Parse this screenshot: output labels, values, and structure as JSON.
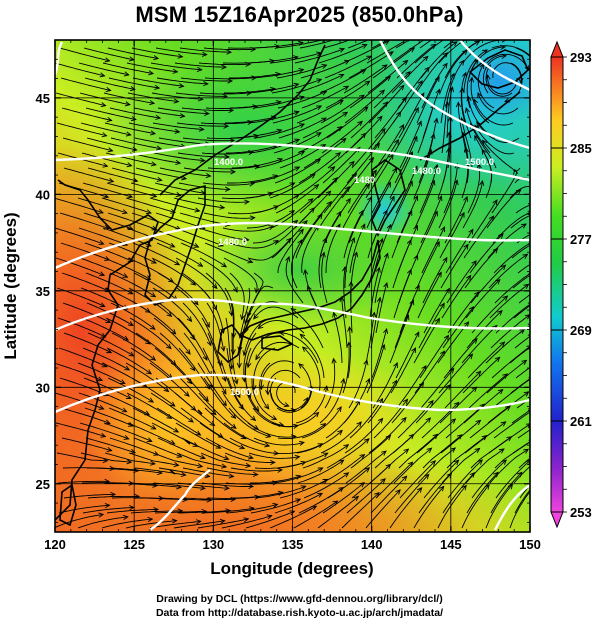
{
  "title": "MSM 15Z16Apr2025 (850.0hPa)",
  "credit": {
    "line1": "Drawing by DCL (https://www.gfd-dennou.org/library/dcl/)",
    "line2": "Data from http://database.rish.kyoto-u.ac.jp/arch/jmadata/"
  },
  "axes": {
    "xlabel": "Longitude (degrees)",
    "ylabel": "Latitude  (degrees)",
    "xticks": [
      "120",
      "125",
      "130",
      "135",
      "140",
      "145",
      "150"
    ],
    "yticks": [
      "25",
      "30",
      "35",
      "40",
      "45"
    ]
  },
  "colorbar": {
    "labels": [
      "293",
      "285",
      "277",
      "269",
      "261",
      "253"
    ]
  },
  "contour_labels": [
    "1400.0",
    "1480",
    "1500.0",
    "1480.0",
    "1480.0",
    "1500.0"
  ],
  "map": {
    "lon_range": [
      120,
      150
    ],
    "lat_range": [
      22.5,
      48
    ],
    "colorbar_range": [
      253,
      293
    ]
  }
}
